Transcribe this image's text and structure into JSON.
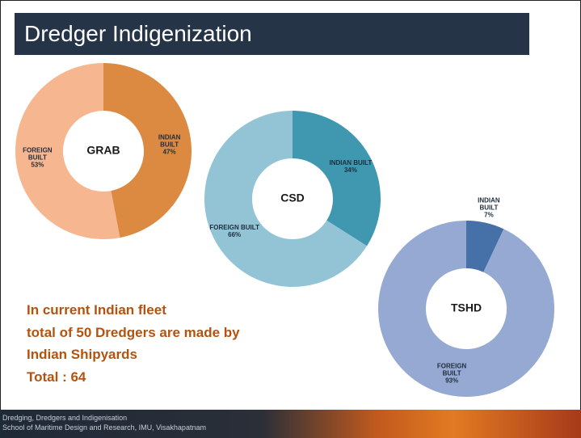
{
  "title": "Dredger Indigenization",
  "text": {
    "lines": [
      "In current Indian fleet",
      "total of 50 Dredgers are made by",
      "Indian Shipyards",
      "Total  : 64"
    ]
  },
  "footer": [
    "Dredging, Dredgers and Indigenisation",
    "School of Maritime Design and Research, IMU, Visakhapatnam"
  ],
  "chart_data": [
    {
      "type": "pie",
      "title": "GRAB",
      "categories": [
        "INDIAN BUILT",
        "FOREIGN BUILT"
      ],
      "values": [
        47,
        53
      ],
      "value_labels": [
        "47%",
        "53%"
      ],
      "colors": [
        "#dc8a42",
        "#f6b690"
      ]
    },
    {
      "type": "pie",
      "title": "CSD",
      "categories": [
        "INDIAN BUILT",
        "FOREIGN BUILT"
      ],
      "values": [
        34,
        66
      ],
      "value_labels": [
        "34%",
        "66%"
      ],
      "colors": [
        "#3f97b0",
        "#93c4d6"
      ]
    },
    {
      "type": "pie",
      "title": "TSHD",
      "categories": [
        "INDIAN BUILT",
        "FOREIGN BUILT"
      ],
      "values": [
        7,
        93
      ],
      "value_labels": [
        "7%",
        "93%"
      ],
      "colors": [
        "#4671a8",
        "#95a9d3"
      ]
    }
  ]
}
